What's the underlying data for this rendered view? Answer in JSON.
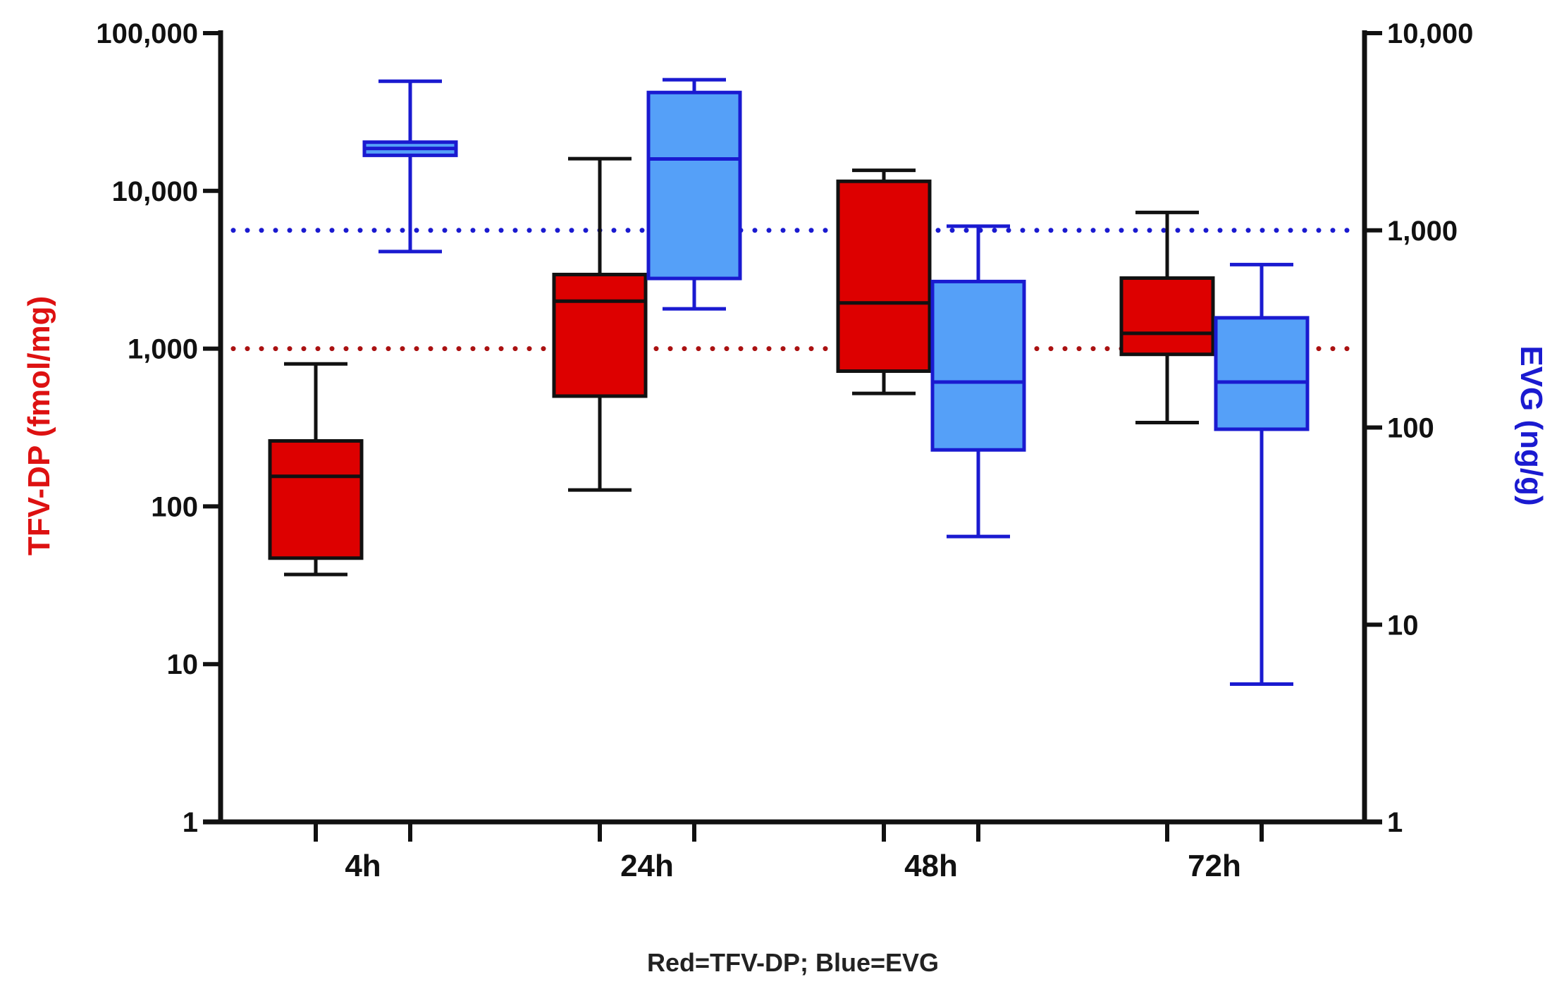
{
  "chart_data": {
    "type": "boxplot",
    "title": "",
    "xlabel": "",
    "note": "Red=TFV-DP; Blue=EVG",
    "categories": [
      "4h",
      "24h",
      "48h",
      "72h"
    ],
    "axes": {
      "left": {
        "label": "TFV-DP (fmol/mg)",
        "scale": "log",
        "range": [
          1,
          100000
        ],
        "ticks": [
          1,
          10,
          100,
          1000,
          10000,
          100000
        ],
        "tick_labels": [
          "1",
          "10",
          "100",
          "1,000",
          "10,000",
          "100,000"
        ],
        "color": "#dd1111"
      },
      "right": {
        "label": "EVG (ng/g)",
        "scale": "log",
        "range": [
          1,
          10000
        ],
        "ticks": [
          1,
          10,
          100,
          1000,
          10000
        ],
        "tick_labels": [
          "1",
          "10",
          "100",
          "1,000",
          "10,000"
        ],
        "color": "#1a1ad0"
      }
    },
    "series": [
      {
        "name": "TFV-DP",
        "axis": "left",
        "fill": "#dd0000",
        "stroke": "#111111",
        "boxes": [
          {
            "category": "4h",
            "min": 37,
            "q1": 47,
            "median": 155,
            "q3": 260,
            "max": 800
          },
          {
            "category": "24h",
            "min": 127,
            "q1": 500,
            "median": 2000,
            "q3": 2950,
            "max": 16000
          },
          {
            "category": "48h",
            "min": 520,
            "q1": 720,
            "median": 1950,
            "q3": 11500,
            "max": 13500
          },
          {
            "category": "72h",
            "min": 340,
            "q1": 920,
            "median": 1250,
            "q3": 2800,
            "max": 7300
          }
        ]
      },
      {
        "name": "EVG",
        "axis": "right",
        "fill": "#55a0f8",
        "stroke": "#1a1ad0",
        "boxes": [
          {
            "category": "4h",
            "min": 780,
            "q1": 2400,
            "median": 2600,
            "q3": 2800,
            "max": 5700
          },
          {
            "category": "24h",
            "min": 400,
            "q1": 570,
            "median": 2300,
            "q3": 5000,
            "max": 5800
          },
          {
            "category": "48h",
            "min": 28,
            "q1": 77,
            "median": 170,
            "q3": 550,
            "max": 1050
          },
          {
            "category": "72h",
            "min": 5,
            "q1": 98,
            "median": 170,
            "q3": 360,
            "max": 670
          }
        ]
      }
    ],
    "reference_lines": [
      {
        "name": "TFV-DP threshold",
        "axis": "left",
        "value": 1000,
        "color": "#aa1111"
      },
      {
        "name": "EVG threshold",
        "axis": "right",
        "value": 1000,
        "color": "#1a1ad0"
      }
    ]
  }
}
